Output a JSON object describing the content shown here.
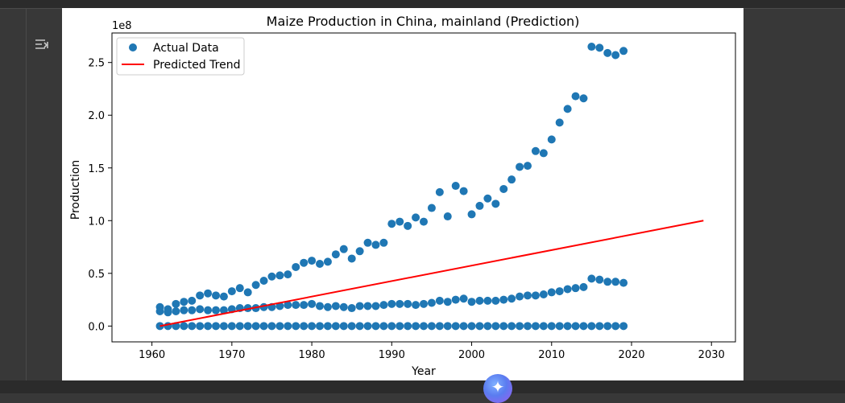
{
  "chart_data": {
    "type": "scatter",
    "title": "Maize Production in China, mainland (Prediction)",
    "xlabel": "Year",
    "ylabel": "Production",
    "y_offset_label": "1e8",
    "xlim": [
      1955,
      2033
    ],
    "ylim": [
      -0.15,
      2.78
    ],
    "x_ticks": [
      1960,
      1970,
      1980,
      1990,
      2000,
      2010,
      2020,
      2030
    ],
    "y_ticks": [
      0.0,
      0.5,
      1.0,
      1.5,
      2.0,
      2.5
    ],
    "x_tick_labels": [
      "1960",
      "1970",
      "1980",
      "1990",
      "2000",
      "2010",
      "2020",
      "2030"
    ],
    "y_tick_labels": [
      "0.0",
      "0.5",
      "1.0",
      "1.5",
      "2.0",
      "2.5"
    ],
    "legend": {
      "position": "top-left",
      "entries": [
        "Actual Data",
        "Predicted Trend"
      ]
    },
    "grid": false,
    "colors": {
      "scatter": "#1f77b4",
      "trend": "#ff0000"
    },
    "series": [
      {
        "name": "Actual Data",
        "type": "scatter",
        "x": [
          1961,
          1962,
          1963,
          1964,
          1965,
          1966,
          1967,
          1968,
          1969,
          1970,
          1971,
          1972,
          1973,
          1974,
          1975,
          1976,
          1977,
          1978,
          1979,
          1980,
          1981,
          1982,
          1983,
          1984,
          1985,
          1986,
          1987,
          1988,
          1989,
          1990,
          1991,
          1992,
          1993,
          1994,
          1995,
          1996,
          1997,
          1998,
          1999,
          2000,
          2001,
          2002,
          2003,
          2004,
          2005,
          2006,
          2007,
          2008,
          2009,
          2010,
          2011,
          2012,
          2013,
          2014,
          2015,
          2016,
          2017,
          2018,
          2019
        ],
        "y_groups": [
          [
            0.18,
            0.16,
            0.21,
            0.23,
            0.24,
            0.29,
            0.31,
            0.29,
            0.28,
            0.33,
            0.36,
            0.32,
            0.39,
            0.43,
            0.47,
            0.48,
            0.49,
            0.56,
            0.6,
            0.62,
            0.59,
            0.61,
            0.68,
            0.73,
            0.64,
            0.71,
            0.79,
            0.77,
            0.79,
            0.97,
            0.99,
            0.95,
            1.03,
            0.99,
            1.12,
            1.27,
            1.04,
            1.33,
            1.28,
            1.06,
            1.14,
            1.21,
            1.16,
            1.3,
            1.39,
            1.51,
            1.52,
            1.66,
            1.64,
            1.77,
            1.93,
            2.06,
            2.18,
            2.16,
            2.65,
            2.64,
            2.59,
            2.57,
            2.61
          ],
          [
            0.14,
            0.13,
            0.14,
            0.15,
            0.15,
            0.16,
            0.15,
            0.15,
            0.15,
            0.16,
            0.17,
            0.17,
            0.17,
            0.18,
            0.18,
            0.19,
            0.2,
            0.2,
            0.2,
            0.21,
            0.19,
            0.18,
            0.19,
            0.18,
            0.17,
            0.19,
            0.19,
            0.19,
            0.2,
            0.21,
            0.21,
            0.21,
            0.2,
            0.21,
            0.22,
            0.24,
            0.23,
            0.25,
            0.26,
            0.23,
            0.24,
            0.24,
            0.24,
            0.25,
            0.26,
            0.28,
            0.29,
            0.29,
            0.3,
            0.32,
            0.33,
            0.35,
            0.36,
            0.37,
            0.45,
            0.44,
            0.42,
            0.42,
            0.41
          ],
          [
            0.0,
            0.0,
            0.0,
            0.0,
            0.0,
            0.0,
            0.0,
            0.0,
            0.0,
            0.0,
            0.0,
            0.0,
            0.0,
            0.0,
            0.0,
            0.0,
            0.0,
            0.0,
            0.0,
            0.0,
            0.0,
            0.0,
            0.0,
            0.0,
            0.0,
            0.0,
            0.0,
            0.0,
            0.0,
            0.0,
            0.0,
            0.0,
            0.0,
            0.0,
            0.0,
            0.0,
            0.0,
            0.0,
            0.0,
            0.0,
            0.0,
            0.0,
            0.0,
            0.0,
            0.0,
            0.0,
            0.0,
            0.0,
            0.0,
            0.0,
            0.0,
            0.0,
            0.0,
            0.0,
            0.0,
            0.0,
            0.0,
            0.0,
            0.0
          ]
        ]
      },
      {
        "name": "Predicted Trend",
        "type": "line",
        "x": [
          1961,
          2029
        ],
        "y": [
          0.0,
          1.0
        ]
      }
    ]
  }
}
